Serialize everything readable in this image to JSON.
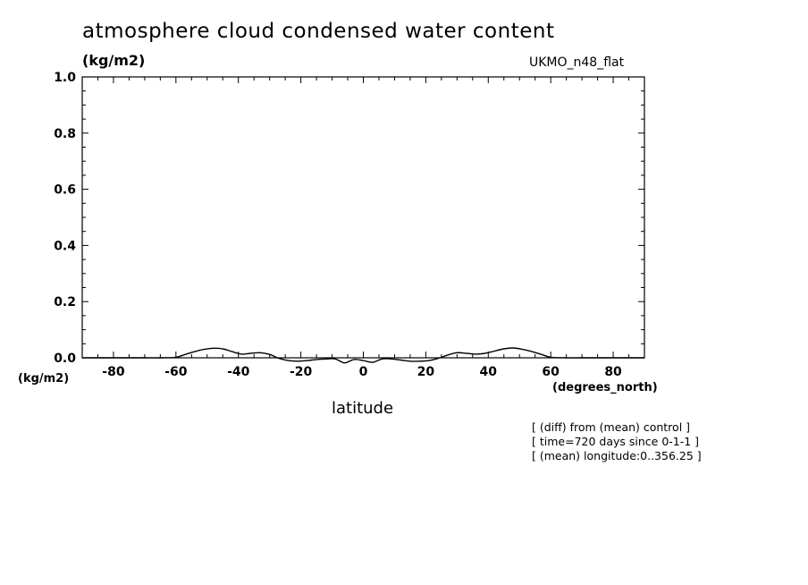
{
  "title": "atmosphere cloud condensed water content",
  "units_top": "(kg/m2)",
  "model_label": "UKMO_n48_flat",
  "units_left": "(kg/m2)",
  "x_units": "(degrees_north)",
  "notes": [
    "[ (diff) from (mean) control ]",
    "[ time=720 days since 0-1-1 ]",
    "[ (mean) longitude:0..356.25 ]"
  ],
  "chart_data": {
    "type": "line",
    "title": "atmosphere cloud condensed water content",
    "xlabel": "latitude",
    "ylabel": "(kg/m2)",
    "xlim": [
      -90,
      90
    ],
    "ylim": [
      0,
      1
    ],
    "xticks": [
      -80,
      -60,
      -40,
      -20,
      0,
      20,
      40,
      60,
      80
    ],
    "xtick_labels": [
      "-80",
      "-60",
      "-40",
      "-20",
      "0",
      "20",
      "40",
      "60",
      "80"
    ],
    "yticks": [
      0,
      0.2,
      0.4,
      0.6,
      0.8,
      1.0
    ],
    "ytick_labels": [
      "0.0",
      "0.2",
      "0.4",
      "0.6",
      "0.8",
      "1.0"
    ],
    "grid": false,
    "series": [
      {
        "x": [
          -90,
          -80,
          -70,
          -65,
          -60,
          -57,
          -54,
          -51,
          -48,
          -45,
          -42,
          -39,
          -36,
          -33,
          -30,
          -27,
          -24,
          -21,
          -18,
          -15,
          -12,
          -9,
          -6,
          -3,
          0,
          3,
          6,
          9,
          12,
          15,
          18,
          21,
          24,
          27,
          30,
          33,
          36,
          39,
          42,
          45,
          48,
          51,
          54,
          57,
          60,
          65,
          70,
          80,
          90
        ],
        "y": [
          0,
          0,
          0,
          0,
          0.002,
          0.012,
          0.022,
          0.03,
          0.034,
          0.032,
          0.022,
          0.013,
          0.016,
          0.018,
          0.012,
          -0.002,
          -0.01,
          -0.012,
          -0.01,
          -0.006,
          -0.004,
          -0.004,
          -0.018,
          -0.006,
          -0.01,
          -0.016,
          -0.004,
          -0.004,
          -0.008,
          -0.012,
          -0.012,
          -0.01,
          -0.002,
          0.01,
          0.018,
          0.016,
          0.013,
          0.016,
          0.024,
          0.032,
          0.035,
          0.03,
          0.022,
          0.012,
          0.002,
          0,
          0,
          0,
          0
        ]
      }
    ]
  }
}
